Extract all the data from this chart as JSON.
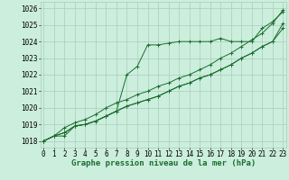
{
  "x": [
    0,
    1,
    2,
    3,
    4,
    5,
    6,
    7,
    8,
    9,
    10,
    11,
    12,
    13,
    14,
    15,
    16,
    17,
    18,
    19,
    20,
    21,
    22,
    23
  ],
  "series": [
    [
      1018.0,
      1018.3,
      1018.3,
      1018.9,
      1019.0,
      1019.2,
      1019.5,
      1019.8,
      1022.0,
      1022.5,
      1023.8,
      1023.8,
      1023.9,
      1024.0,
      1024.0,
      1024.0,
      1024.0,
      1024.2,
      1024.0,
      1024.0,
      1024.0,
      1024.8,
      1025.2,
      1025.8
    ],
    [
      1018.0,
      1018.3,
      1018.5,
      1018.9,
      1019.0,
      1019.2,
      1019.5,
      1019.8,
      1020.1,
      1020.3,
      1020.5,
      1020.7,
      1021.0,
      1021.3,
      1021.5,
      1021.8,
      1022.0,
      1022.3,
      1022.6,
      1023.0,
      1023.3,
      1023.7,
      1024.0,
      1024.8
    ],
    [
      1018.0,
      1018.3,
      1018.5,
      1018.9,
      1019.0,
      1019.2,
      1019.5,
      1019.8,
      1020.1,
      1020.3,
      1020.5,
      1020.7,
      1021.0,
      1021.3,
      1021.5,
      1021.8,
      1022.0,
      1022.3,
      1022.6,
      1023.0,
      1023.3,
      1023.7,
      1024.0,
      1025.1
    ],
    [
      1018.0,
      1018.3,
      1018.8,
      1019.1,
      1019.3,
      1019.6,
      1020.0,
      1020.3,
      1020.5,
      1020.8,
      1021.0,
      1021.3,
      1021.5,
      1021.8,
      1022.0,
      1022.3,
      1022.6,
      1023.0,
      1023.3,
      1023.7,
      1024.1,
      1024.5,
      1025.1,
      1025.9
    ]
  ],
  "bg_color": "#cceedd",
  "grid_color": "#aaccbb",
  "line_color": "#1a6e2e",
  "marker": "+",
  "marker_size": 2.5,
  "linewidth": 0.7,
  "ylim": [
    1017.6,
    1026.4
  ],
  "xlim": [
    -0.3,
    23.3
  ],
  "yticks": [
    1018,
    1019,
    1020,
    1021,
    1022,
    1023,
    1024,
    1025,
    1026
  ],
  "xticks": [
    0,
    1,
    2,
    3,
    4,
    5,
    6,
    7,
    8,
    9,
    10,
    11,
    12,
    13,
    14,
    15,
    16,
    17,
    18,
    19,
    20,
    21,
    22,
    23
  ],
  "xlabel": "Graphe pression niveau de la mer (hPa)",
  "xlabel_fontsize": 6.5,
  "tick_fontsize": 5.5
}
